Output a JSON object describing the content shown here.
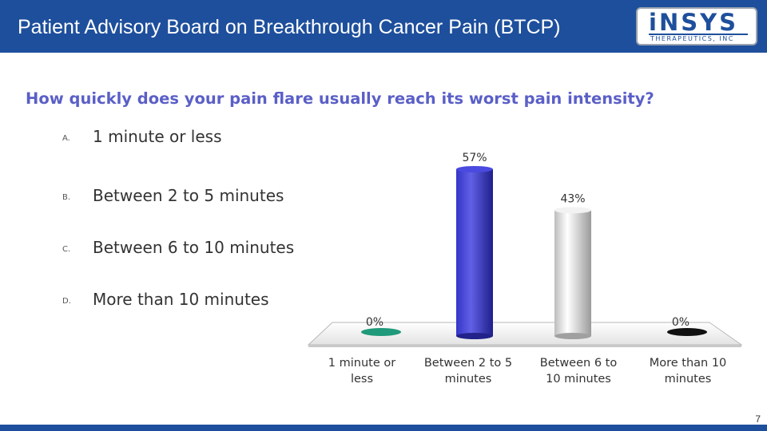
{
  "header": {
    "title": "Patient Advisory Board on Breakthrough Cancer Pain (BTCP)",
    "logo_main": "iNSYS",
    "logo_sub": "THERAPEUTICS, INC"
  },
  "question": "How quickly does your pain flare usually reach its worst pain intensity?",
  "options": [
    {
      "letter": "A.",
      "text": "1 minute or less"
    },
    {
      "letter": "B.",
      "text": "Between 2 to 5 minutes"
    },
    {
      "letter": "C.",
      "text": "Between 6 to 10 minutes"
    },
    {
      "letter": "D.",
      "text": "More than 10 minutes"
    }
  ],
  "chart_data": {
    "type": "bar",
    "title": "",
    "categories": [
      [
        "1 minute or",
        "less"
      ],
      [
        "Between 2 to 5",
        "minutes"
      ],
      [
        "Between 6 to",
        "10 minutes"
      ],
      [
        "More than 10",
        "minutes"
      ]
    ],
    "values": [
      0,
      57,
      43,
      0
    ],
    "data_labels": [
      "0%",
      "57%",
      "43%",
      "0%"
    ],
    "colors": [
      "#1f9a7a",
      "#3535c8",
      "#d9d9d9",
      "#111111"
    ],
    "ylim": [
      0,
      60
    ],
    "grid": false,
    "legend": "none",
    "style": "3d-cylinder"
  },
  "page_number": "7"
}
